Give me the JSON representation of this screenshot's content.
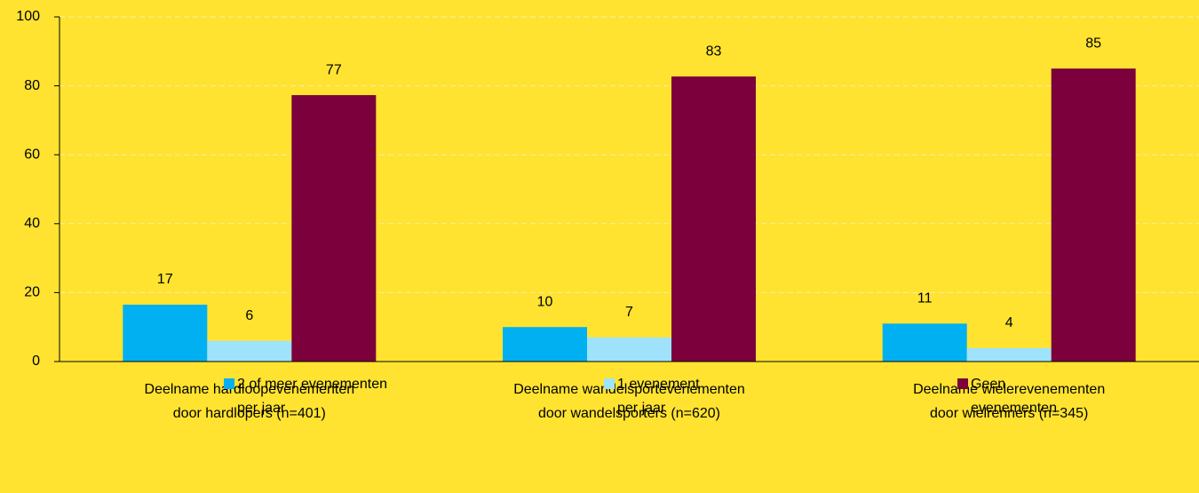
{
  "chart_data": {
    "type": "bar",
    "categories": [
      "Deelname hardloopevenementen\ndoor hardlopers (n=401)",
      "Deelname wandelsportevenementen\ndoor wandelsporters (n=620)",
      "Deelname wielerevenementen\ndoor wielrenners (n=345)"
    ],
    "series": [
      {
        "name": "2 of meer evenementen\nper jaar",
        "color": "#00b0f0",
        "label_color": "#000000",
        "values": [
          16.5,
          10,
          11
        ],
        "value_labels": [
          "17",
          "10",
          "11"
        ]
      },
      {
        "name": "1 evenement\nper jaar",
        "color": "#9ee3fb",
        "label_color": "#595959",
        "values": [
          6,
          7,
          3.9
        ],
        "value_labels": [
          "6",
          "7",
          "4"
        ]
      },
      {
        "name": "Geen\nevenementen",
        "color": "#7b003c",
        "label_color": "#404040",
        "values": [
          77.3,
          82.7,
          85
        ],
        "value_labels": [
          "77",
          "83",
          "85"
        ]
      }
    ],
    "ylim": [
      0,
      100
    ],
    "yticks": [
      0,
      20,
      40,
      60,
      80,
      100
    ],
    "grid": true
  }
}
